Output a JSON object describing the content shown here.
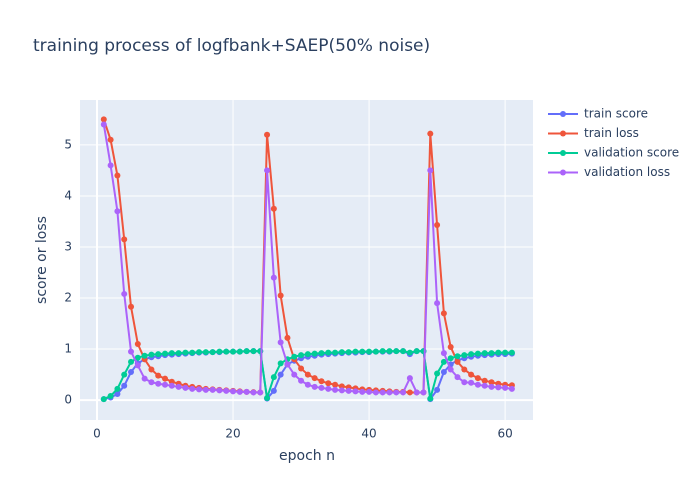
{
  "chart_data": {
    "type": "line",
    "title": "training process of logfbank+SAEP(50% noise)",
    "x_label": "epoch n",
    "y_label": "score or loss",
    "x": [
      1,
      2,
      3,
      4,
      5,
      6,
      7,
      8,
      9,
      10,
      11,
      12,
      13,
      14,
      15,
      16,
      17,
      18,
      19,
      20,
      21,
      22,
      23,
      24,
      25,
      26,
      27,
      28,
      29,
      30,
      31,
      32,
      33,
      34,
      35,
      36,
      37,
      38,
      39,
      40,
      41,
      42,
      43,
      44,
      45,
      46,
      47,
      48,
      49,
      50,
      51,
      52,
      53,
      54,
      55,
      56,
      57,
      58,
      59,
      60,
      61
    ],
    "series": [
      {
        "name": "train score",
        "color": "#636efa",
        "values": [
          0.02,
          0.05,
          0.12,
          0.28,
          0.55,
          0.72,
          0.8,
          0.84,
          0.86,
          0.88,
          0.89,
          0.9,
          0.91,
          0.92,
          0.93,
          0.93,
          0.94,
          0.94,
          0.95,
          0.95,
          0.95,
          0.96,
          0.96,
          0.96,
          0.03,
          0.18,
          0.5,
          0.7,
          0.77,
          0.82,
          0.85,
          0.87,
          0.89,
          0.9,
          0.91,
          0.92,
          0.93,
          0.93,
          0.94,
          0.94,
          0.95,
          0.95,
          0.95,
          0.96,
          0.96,
          0.9,
          0.96,
          0.96,
          0.02,
          0.2,
          0.55,
          0.7,
          0.78,
          0.82,
          0.85,
          0.87,
          0.88,
          0.89,
          0.9,
          0.9,
          0.91
        ]
      },
      {
        "name": "train loss",
        "color": "#EF553B",
        "values": [
          5.5,
          5.1,
          4.4,
          3.15,
          1.83,
          1.1,
          0.8,
          0.6,
          0.48,
          0.42,
          0.36,
          0.32,
          0.28,
          0.26,
          0.24,
          0.22,
          0.21,
          0.2,
          0.19,
          0.18,
          0.17,
          0.16,
          0.155,
          0.15,
          5.2,
          3.75,
          2.05,
          1.22,
          0.8,
          0.62,
          0.5,
          0.43,
          0.37,
          0.33,
          0.3,
          0.27,
          0.25,
          0.23,
          0.21,
          0.2,
          0.19,
          0.18,
          0.17,
          0.16,
          0.16,
          0.15,
          0.15,
          0.15,
          5.22,
          3.43,
          1.7,
          1.04,
          0.75,
          0.6,
          0.5,
          0.43,
          0.38,
          0.35,
          0.32,
          0.3,
          0.29
        ]
      },
      {
        "name": "validation score",
        "color": "#00cc96",
        "values": [
          0.02,
          0.08,
          0.22,
          0.5,
          0.75,
          0.83,
          0.87,
          0.89,
          0.9,
          0.91,
          0.92,
          0.92,
          0.93,
          0.93,
          0.94,
          0.94,
          0.94,
          0.95,
          0.95,
          0.95,
          0.95,
          0.96,
          0.96,
          0.96,
          0.04,
          0.45,
          0.72,
          0.8,
          0.85,
          0.88,
          0.9,
          0.91,
          0.92,
          0.93,
          0.93,
          0.94,
          0.94,
          0.95,
          0.95,
          0.95,
          0.95,
          0.96,
          0.96,
          0.96,
          0.96,
          0.93,
          0.96,
          0.96,
          0.03,
          0.52,
          0.75,
          0.82,
          0.86,
          0.88,
          0.9,
          0.91,
          0.92,
          0.92,
          0.93,
          0.93,
          0.93
        ]
      },
      {
        "name": "validation loss",
        "color": "#ab63fa",
        "values": [
          5.4,
          4.6,
          3.7,
          2.08,
          0.95,
          0.68,
          0.42,
          0.35,
          0.32,
          0.3,
          0.28,
          0.26,
          0.24,
          0.22,
          0.21,
          0.2,
          0.2,
          0.19,
          0.18,
          0.17,
          0.16,
          0.16,
          0.15,
          0.15,
          4.5,
          2.4,
          1.13,
          0.7,
          0.5,
          0.38,
          0.3,
          0.26,
          0.24,
          0.22,
          0.2,
          0.19,
          0.18,
          0.17,
          0.16,
          0.16,
          0.15,
          0.15,
          0.15,
          0.15,
          0.15,
          0.43,
          0.15,
          0.15,
          4.5,
          1.9,
          0.92,
          0.6,
          0.45,
          0.35,
          0.34,
          0.3,
          0.28,
          0.26,
          0.25,
          0.24,
          0.22
        ]
      }
    ],
    "xlim": [
      -2.5,
      64.1
    ],
    "xticks": [
      0,
      20,
      40,
      60
    ],
    "ylim": [
      -0.39,
      5.88
    ],
    "yticks": [
      0,
      1,
      2,
      3,
      4,
      5
    ],
    "grid": true,
    "legend": "right"
  }
}
